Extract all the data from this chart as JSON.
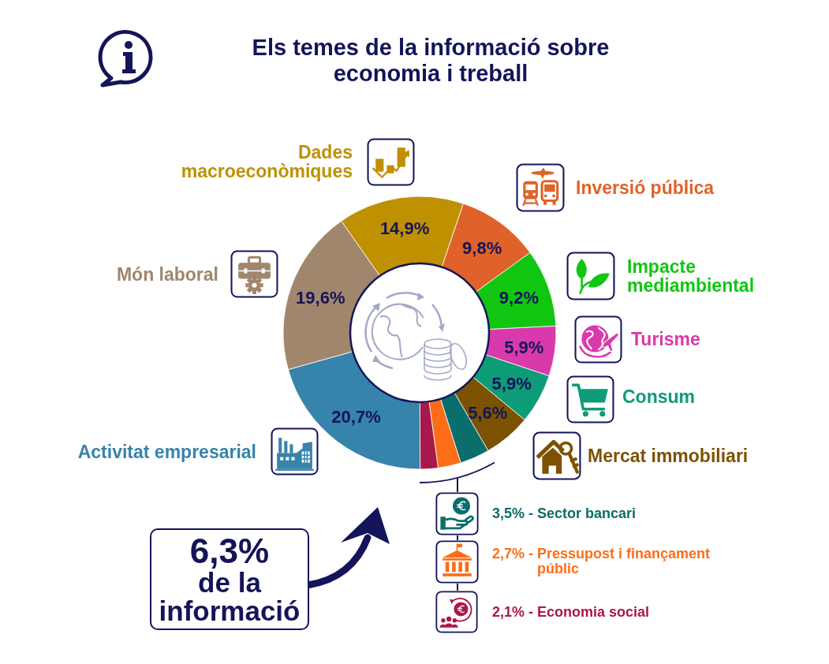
{
  "chart_data": {
    "type": "donut",
    "title": "Els temes de la informació sobre economia i treball",
    "categories": [
      "Dades macroeconòmiques",
      "Inversió pública",
      "Impacte mediambiental",
      "Turisme",
      "Consum",
      "Mercat immobiliari",
      "Sector bancari",
      "Pressupost i finançament públic",
      "Economia social",
      "Activitat empresarial",
      "Món laboral"
    ],
    "values": [
      14.9,
      9.8,
      9.2,
      5.9,
      5.9,
      5.6,
      3.5,
      2.7,
      2.1,
      20.7,
      19.6
    ],
    "value_labels": [
      "14,9%",
      "9,8%",
      "9,2%",
      "5,9%",
      "5,9%",
      "5,6%",
      "3,5% -",
      "2,7% -",
      "2,1% -",
      "20,7%",
      "19,6%"
    ],
    "colors": [
      "#bf9000",
      "#e0622a",
      "#11c611",
      "#d93aab",
      "#0e9b78",
      "#7c5200",
      "#0a6e6b",
      "#fd6d17",
      "#a9184a",
      "#3683ac",
      "#a0866c"
    ],
    "legend": "right",
    "annotations": [
      "6,3% de la informació"
    ]
  }
}
